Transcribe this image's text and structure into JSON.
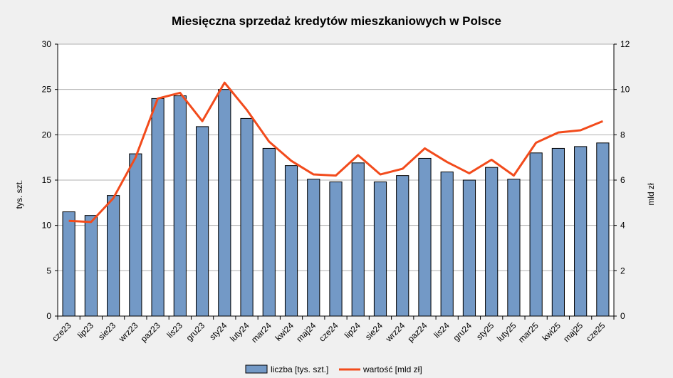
{
  "chart_data": {
    "type": "bar",
    "title": "Miesięczna sprzedaż kredytów mieszkaniowych w Polsce",
    "ylabel": "tys. szt.",
    "y2label": "mld zł",
    "ylim": [
      0,
      30
    ],
    "y2lim": [
      0,
      12
    ],
    "yticks": [
      "0",
      "5",
      "10",
      "15",
      "20",
      "25",
      "30"
    ],
    "y2ticks": [
      "0",
      "2",
      "4",
      "6",
      "8",
      "10",
      "12"
    ],
    "grid": true,
    "legend_position": "bottom",
    "categories": [
      "cze23",
      "lip23",
      "sie23",
      "wrz23",
      "paz23",
      "lis23",
      "gru23",
      "sty24",
      "luty24",
      "mar24",
      "kwi24",
      "maj24",
      "cze24",
      "lip24",
      "sie24",
      "wrz24",
      "paz24",
      "lis24",
      "gru24",
      "sty25",
      "luty25",
      "mar25",
      "kwi25",
      "maj25",
      "cze25"
    ],
    "series": [
      {
        "name": "liczba [tys. szt.]",
        "type": "bar",
        "axis": "left",
        "color": "#7399c6",
        "values": [
          11.5,
          11.1,
          13.3,
          17.9,
          24.0,
          24.3,
          20.9,
          25.0,
          21.8,
          18.5,
          16.6,
          15.1,
          14.8,
          16.9,
          14.8,
          15.5,
          17.4,
          15.9,
          15.0,
          16.4,
          15.1,
          18.0,
          18.5,
          18.7,
          19.1
        ]
      },
      {
        "name": "wartość [mld zł]",
        "type": "line",
        "axis": "right",
        "color": "#f24b1c",
        "values": [
          4.2,
          4.15,
          5.2,
          7.0,
          9.6,
          9.85,
          8.6,
          10.3,
          9.1,
          7.7,
          6.85,
          6.25,
          6.2,
          7.1,
          6.25,
          6.5,
          7.4,
          6.8,
          6.3,
          6.9,
          6.2,
          7.65,
          8.1,
          8.2,
          8.6
        ]
      }
    ]
  }
}
